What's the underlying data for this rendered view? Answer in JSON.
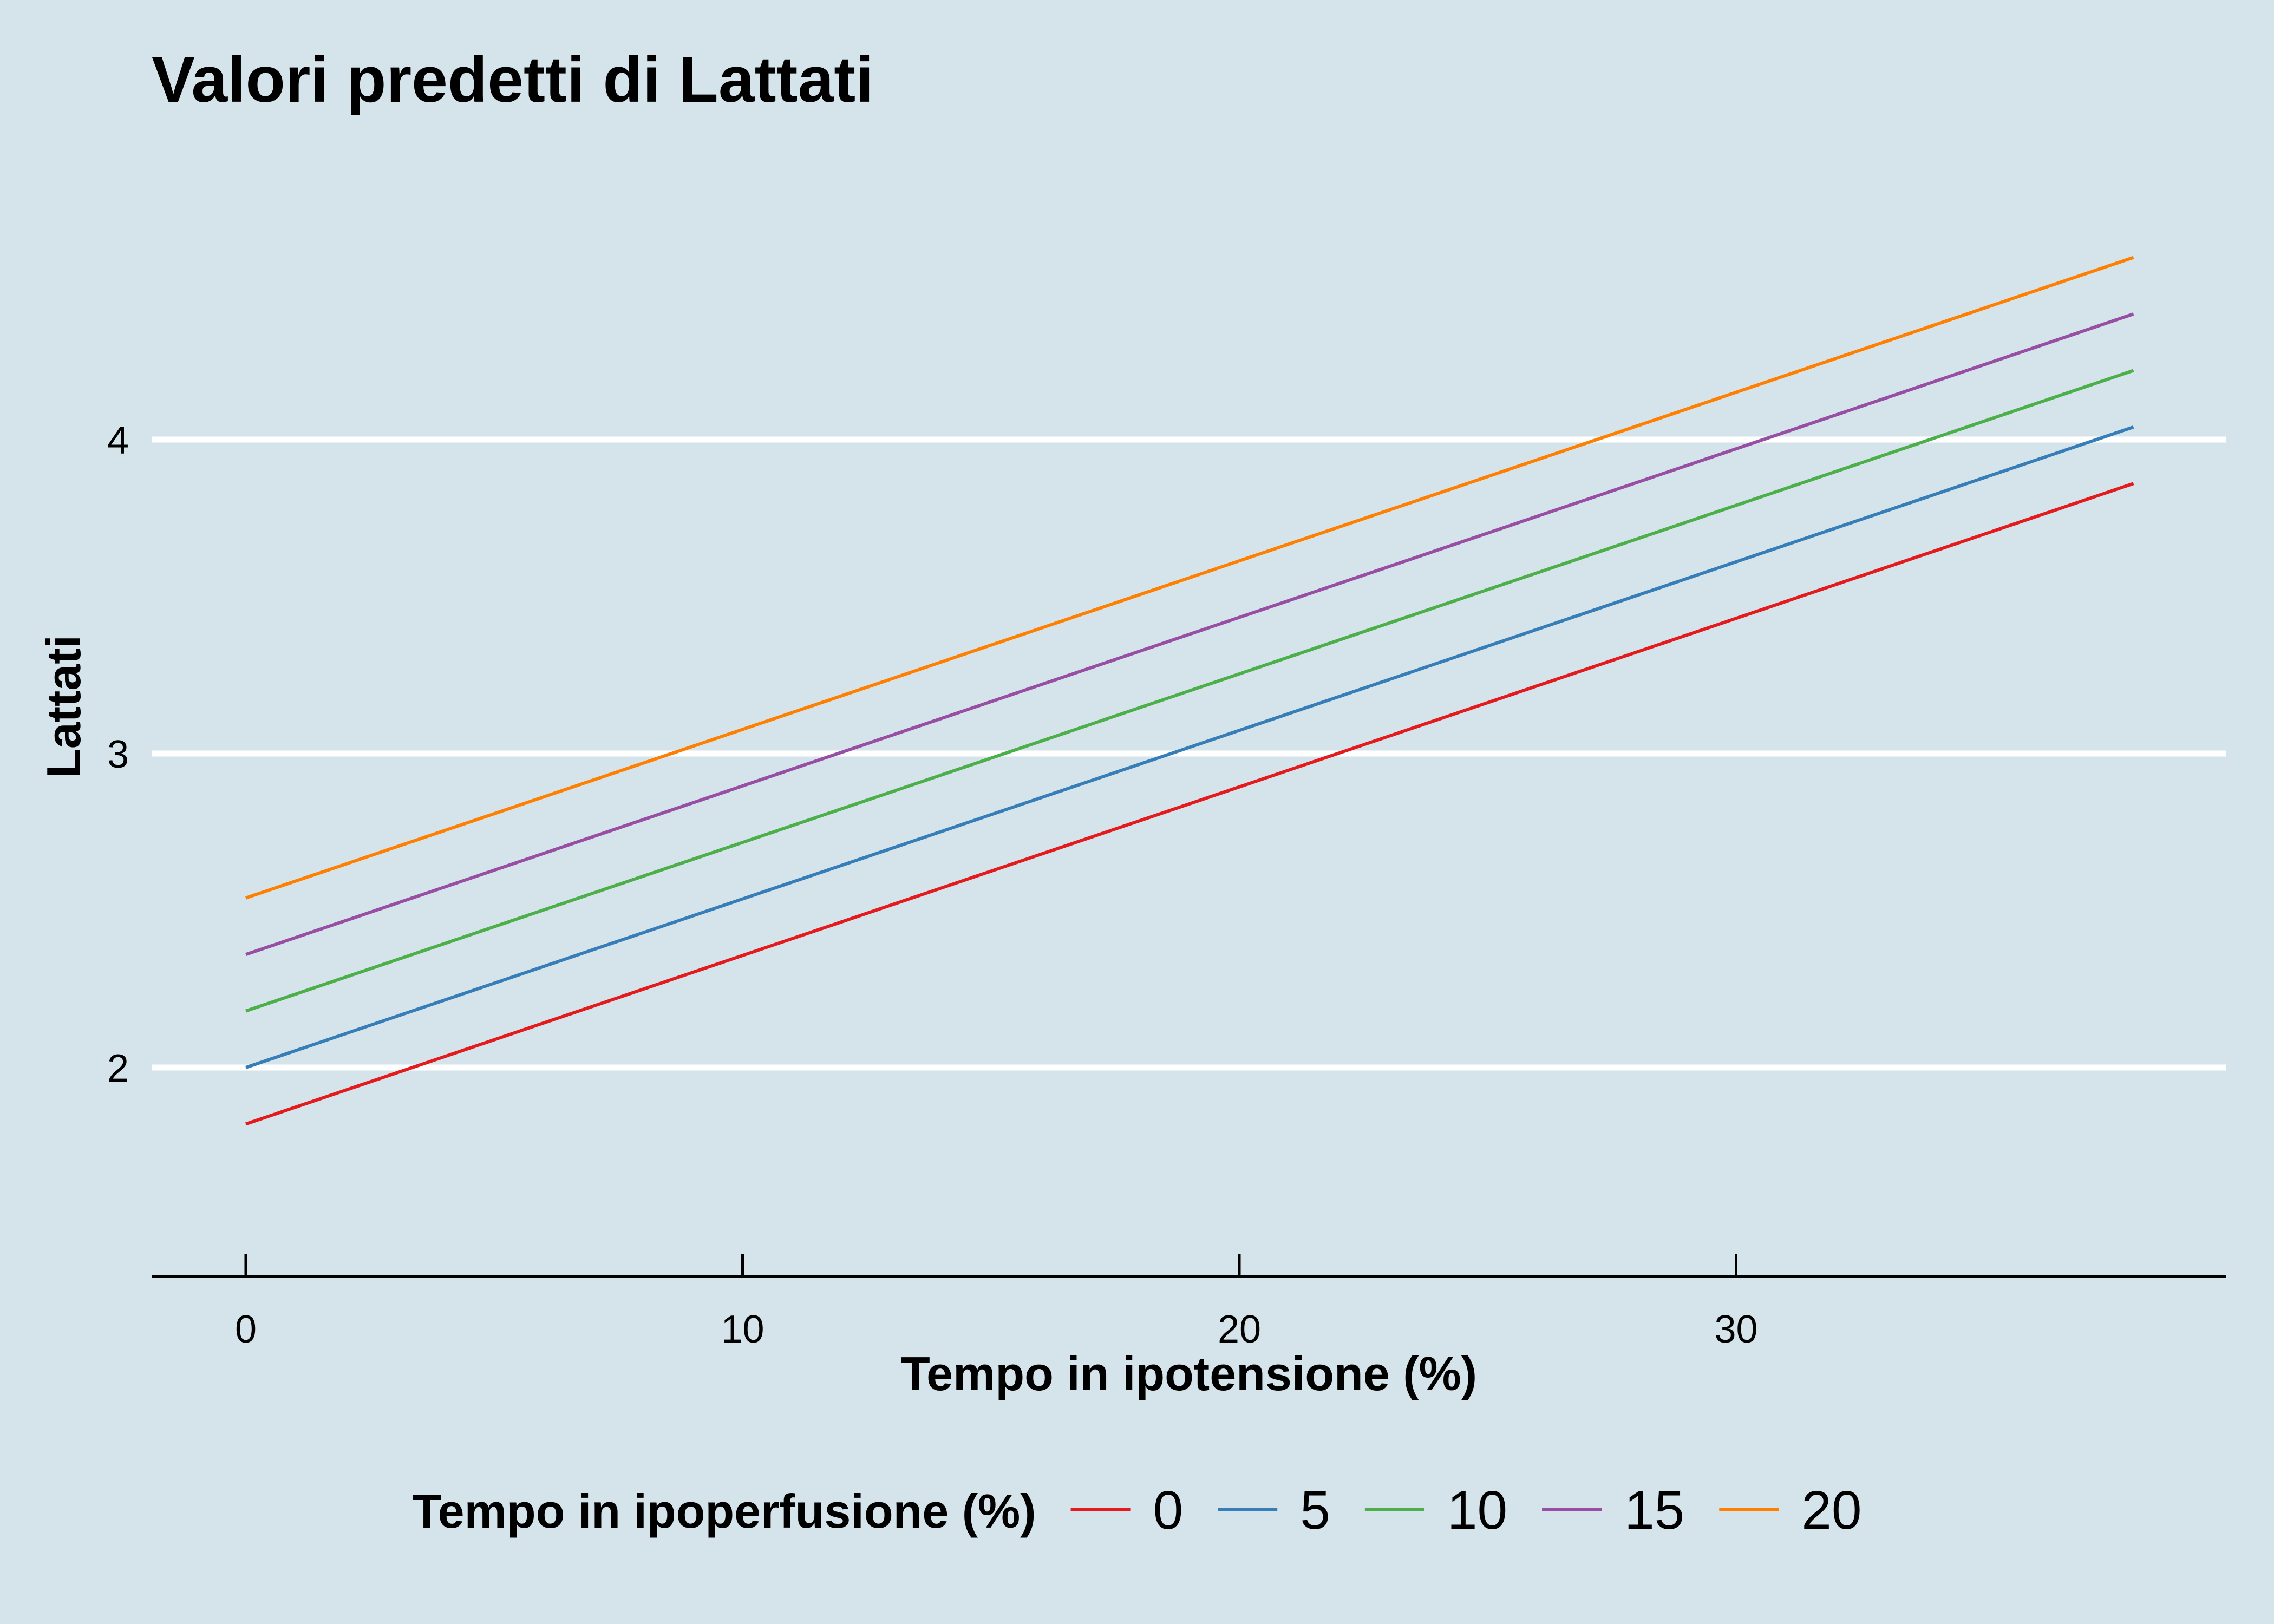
{
  "chart_data": {
    "type": "line",
    "title": "Valori predetti di Lattati",
    "xlabel": "Tempo in ipotensione (%)",
    "ylabel": "Lattati",
    "xlim": [
      -1.9,
      39.9
    ],
    "ylim": [
      1.33,
      4.87
    ],
    "x_ticks": [
      0,
      10,
      20,
      30
    ],
    "y_ticks": [
      2,
      3,
      4
    ],
    "grid": "horizontal-major",
    "legend": {
      "title": "Tempo in ipoperfusione (%)",
      "position": "bottom"
    },
    "series": [
      {
        "name": "0",
        "color": "#e41a1c",
        "x": [
          0,
          38
        ],
        "y": [
          1.82,
          3.86
        ]
      },
      {
        "name": "5",
        "color": "#377eb8",
        "x": [
          0,
          38
        ],
        "y": [
          2.0,
          4.04
        ]
      },
      {
        "name": "10",
        "color": "#4daf4a",
        "x": [
          0,
          38
        ],
        "y": [
          2.18,
          4.22
        ]
      },
      {
        "name": "15",
        "color": "#984ea3",
        "x": [
          0,
          38
        ],
        "y": [
          2.36,
          4.4
        ]
      },
      {
        "name": "20",
        "color": "#ff7f00",
        "x": [
          0,
          38
        ],
        "y": [
          2.54,
          4.58
        ]
      }
    ]
  }
}
